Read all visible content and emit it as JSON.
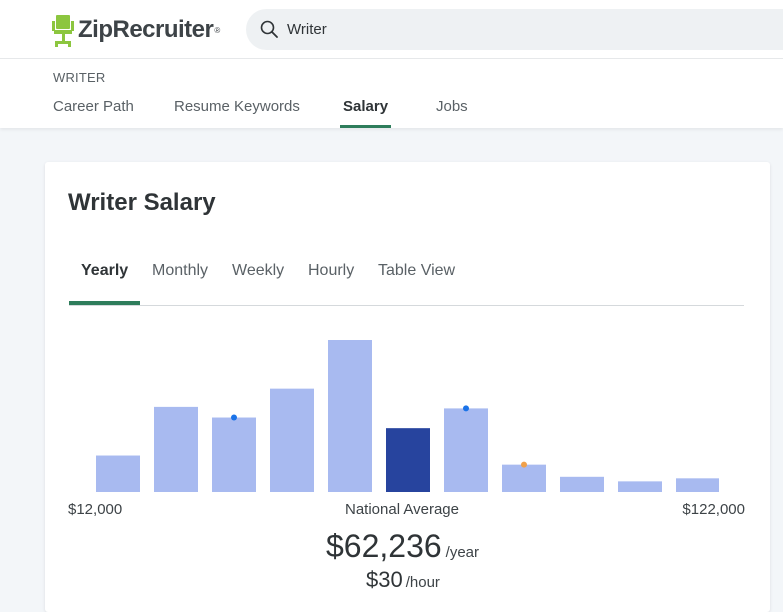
{
  "header": {
    "logo_text": "ZipRecruiter",
    "logo_mark": "®",
    "logo_icon": "chair-icon",
    "search": {
      "value": "Writer",
      "icon": "search-icon"
    }
  },
  "subnav": {
    "breadcrumb": "WRITER",
    "tabs": [
      {
        "label": "Career Path"
      },
      {
        "label": "Resume Keywords"
      },
      {
        "label": "Salary",
        "active": true
      },
      {
        "label": "Jobs"
      }
    ]
  },
  "salary_card": {
    "title": "Writer Salary",
    "tabs": [
      {
        "label": "Yearly",
        "active": true
      },
      {
        "label": "Monthly"
      },
      {
        "label": "Weekly"
      },
      {
        "label": "Hourly"
      },
      {
        "label": "Table View"
      }
    ],
    "range_min": "$12,000",
    "range_mid_label": "National Average",
    "range_max": "$122,000",
    "average_yearly": "$62,236",
    "average_yearly_unit": "/year",
    "average_hourly": "$30",
    "average_hourly_unit": "/hour"
  },
  "chart_data": {
    "type": "bar",
    "values": [
      24,
      56,
      49,
      68,
      100,
      42,
      55,
      18,
      10,
      7,
      9
    ],
    "highlight_index": 5,
    "markers": [
      {
        "bar": 2,
        "color": "#1a73e8"
      },
      {
        "bar": 6,
        "color": "#1a73e8"
      },
      {
        "bar": 7,
        "color": "#f0a14b"
      }
    ],
    "colors": {
      "bar": "#a8baf0",
      "highlight": "#27449e"
    }
  },
  "colors": {
    "accent": "#2e7d5b",
    "logo_green": "#8cc63f"
  }
}
